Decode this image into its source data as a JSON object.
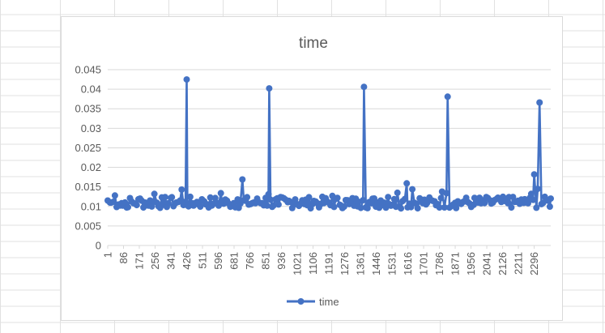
{
  "chart_data": {
    "type": "line",
    "title": "time",
    "xlabel": "",
    "ylabel": "",
    "x_range": [
      1,
      2385
    ],
    "ylim": [
      0,
      0.045
    ],
    "y_ticks": [
      "0",
      "0.005",
      "0.01",
      "0.015",
      "0.02",
      "0.025",
      "0.03",
      "0.035",
      "0.04",
      "0.045"
    ],
    "x_tick_labels": [
      "1",
      "86",
      "171",
      "256",
      "341",
      "426",
      "511",
      "596",
      "681",
      "766",
      "851",
      "936",
      "1021",
      "1106",
      "1191",
      "1276",
      "1361",
      "1446",
      "1531",
      "1616",
      "1701",
      "1786",
      "1871",
      "1956",
      "2041",
      "2126",
      "2211",
      "2296"
    ],
    "x_tick_step": 85,
    "grid": "horizontal",
    "legend_position": "bottom",
    "colors": {
      "series": "#4472c4"
    },
    "series": [
      {
        "name": "time",
        "baseline_range": [
          0.0095,
          0.0125
        ],
        "x": [
          1,
          20,
          40,
          60,
          81,
          110,
          140,
          175,
          210,
          252,
          300,
          341,
          370,
          399,
          420,
          426,
          430,
          470,
          520,
          570,
          610,
          650,
          700,
          726,
          770,
          810,
          851,
          866,
          870,
          920,
          970,
          1010,
          1060,
          1110,
          1150,
          1200,
          1210,
          1250,
          1300,
          1350,
          1375,
          1380,
          1420,
          1470,
          1510,
          1560,
          1600,
          1610,
          1640,
          1680,
          1720,
          1760,
          1800,
          1824,
          1830,
          1870,
          1920,
          1970,
          2010,
          2060,
          2110,
          2160,
          2200,
          2240,
          2280,
          2296,
          2315,
          2325,
          2360,
          2385
        ],
        "y": [
          0.0115,
          0.011,
          0.0128,
          0.0105,
          0.0102,
          0.0098,
          0.0108,
          0.012,
          0.0104,
          0.0132,
          0.0104,
          0.0122,
          0.011,
          0.0143,
          0.0112,
          0.0425,
          0.0103,
          0.0108,
          0.0113,
          0.0107,
          0.0134,
          0.0108,
          0.0118,
          0.0169,
          0.0106,
          0.0112,
          0.0122,
          0.0131,
          0.0402,
          0.0105,
          0.0111,
          0.0118,
          0.0106,
          0.0114,
          0.0107,
          0.0103,
          0.0127,
          0.0104,
          0.0106,
          0.0112,
          0.0116,
          0.0406,
          0.0108,
          0.0115,
          0.0124,
          0.0135,
          0.0119,
          0.0159,
          0.0144,
          0.0121,
          0.0109,
          0.0113,
          0.0138,
          0.0134,
          0.0381,
          0.0109,
          0.0113,
          0.0104,
          0.0108,
          0.0115,
          0.0118,
          0.0124,
          0.0112,
          0.0109,
          0.0132,
          0.0182,
          0.0145,
          0.0366,
          0.0117,
          0.012
        ]
      }
    ]
  }
}
